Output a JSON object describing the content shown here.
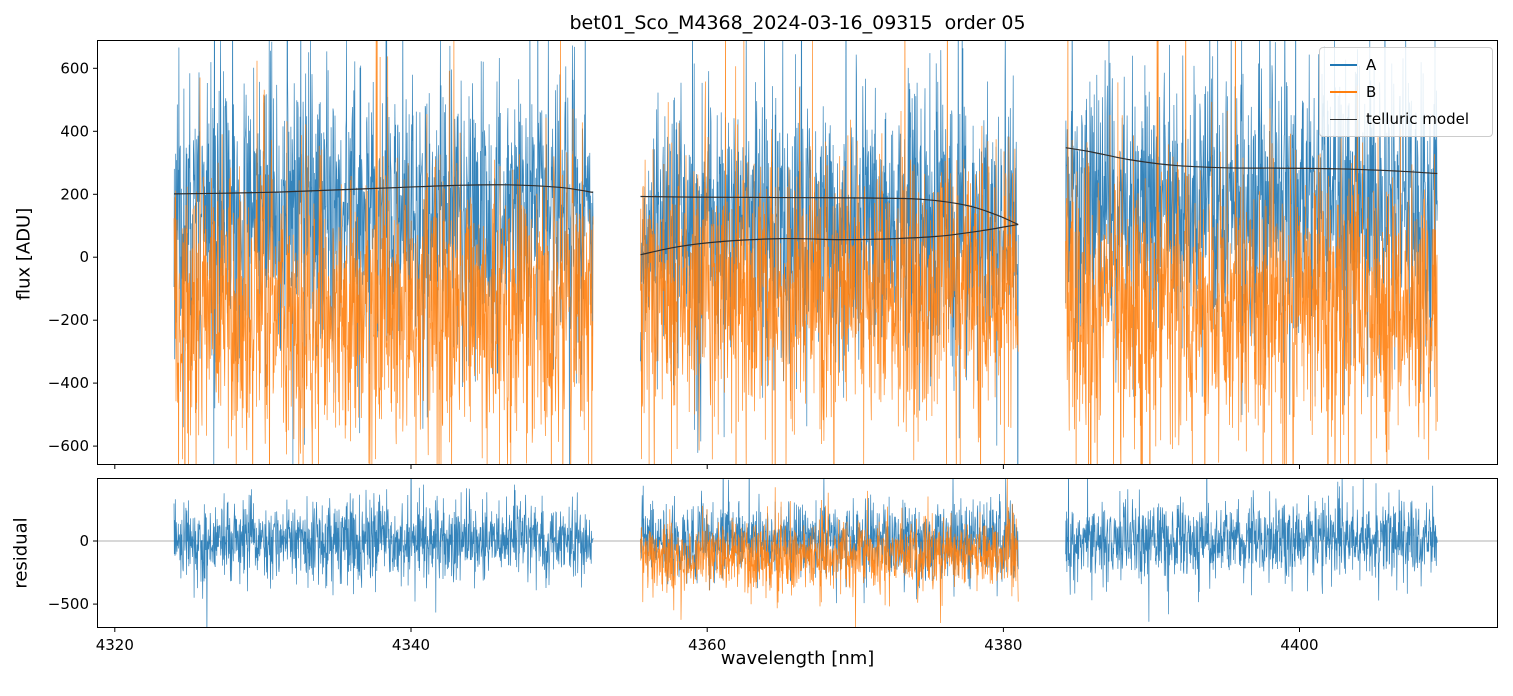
{
  "figure": {
    "background": "#ffffff"
  },
  "chart_data": [
    {
      "type": "line",
      "title": "bet01_Sco_M4368_2024-03-16_09315  order 05",
      "ylabel": "flux [ADU]",
      "xlim": [
        4318.8,
        4413.4
      ],
      "ylim": [
        -660,
        690
      ],
      "yticks": [
        600,
        400,
        200,
        0,
        -200,
        -400,
        -600
      ],
      "xticks": [
        4320,
        4340,
        4360,
        4380,
        4400
      ],
      "grid": false,
      "legend": {
        "position": "upper right",
        "entries": [
          {
            "label": "A",
            "color": "#1f77b4",
            "sample_width": 2.5
          },
          {
            "label": "B",
            "color": "#ff7f0e",
            "sample_width": 2.5
          },
          {
            "label": "telluric model",
            "color": "#2f2f2f",
            "sample_width": 1.5
          }
        ]
      },
      "segments_x": [
        [
          4324.0,
          4352.3
        ],
        [
          4355.5,
          4381.0
        ],
        [
          4384.2,
          4409.3
        ]
      ],
      "points_per_nm": 45,
      "series": [
        {
          "name": "A",
          "color": "#1f77b4",
          "opacity": 0.9,
          "segment_mean": [
            150,
            100,
            180
          ],
          "segment_std": [
            215,
            215,
            215
          ],
          "spike_prob": 0.05,
          "spike_scale": 2.1,
          "seed": 11
        },
        {
          "name": "B",
          "color": "#ff7f0e",
          "opacity": 0.9,
          "segment_mean": [
            -160,
            -110,
            -160
          ],
          "segment_std": [
            225,
            215,
            225
          ],
          "spike_prob": 0.05,
          "spike_scale": 2.1,
          "seed": 77
        }
      ],
      "model": {
        "name": "telluric model",
        "color": "#2f2f2f",
        "width": 1.2,
        "curves": [
          {
            "x": [
              4324.0,
              4327,
              4331,
              4335,
              4339,
              4343,
              4346.5,
              4350,
              4352.3
            ],
            "y": [
              201,
              203,
              207,
              214,
              221,
              228,
              230,
              222,
              206
            ]
          },
          {
            "x": [
              4355.5,
              4359,
              4363,
              4367,
              4371,
              4374.5,
              4377.5,
              4379.5,
              4381.0
            ],
            "y": [
              193,
              191,
              190,
              189,
              188,
              184,
              165,
              135,
              104
            ]
          },
          {
            "x": [
              4355.5,
              4358,
              4361,
              4365,
              4369,
              4372,
              4375.5,
              4378.5,
              4381.0
            ],
            "y": [
              8,
              33,
              50,
              59,
              56,
              58,
              66,
              84,
              104
            ]
          },
          {
            "x": [
              4384.2,
              4386,
              4388.5,
              4391.5,
              4395,
              4398.5,
              4402.5,
              4406.5,
              4409.3
            ],
            "y": [
              348,
              334,
              310,
              292,
              284,
              283,
              281,
              274,
              266
            ]
          }
        ]
      }
    },
    {
      "type": "line",
      "ylabel": "residual",
      "xlabel": "wavelength [nm]",
      "xlim": [
        4318.8,
        4413.4
      ],
      "ylim": [
        -690,
        500
      ],
      "yticks": [
        0,
        -500
      ],
      "xticks": [
        4320,
        4340,
        4360,
        4380,
        4400
      ],
      "grid": false,
      "zero_line": {
        "y": 0,
        "color": "#b0b0b0"
      },
      "segments_x": [
        [
          4324.0,
          4352.3
        ],
        [
          4355.5,
          4381.0
        ],
        [
          4384.2,
          4409.3
        ]
      ],
      "points_per_nm": 45,
      "series": [
        {
          "name": "A",
          "color": "#1f77b4",
          "opacity": 0.9,
          "segment_mean": [
            0,
            0,
            0
          ],
          "segment_std": [
            150,
            155,
            150
          ],
          "spike_prob": 0.05,
          "spike_scale": 2.0,
          "seed": 23
        },
        {
          "name": "B",
          "color": "#ff7f0e",
          "opacity": 0.9,
          "segment_mean": [
            null,
            -110,
            null
          ],
          "segment_std": [
            null,
            140,
            null
          ],
          "spike_prob": 0.05,
          "spike_scale": 2.0,
          "seed": 91
        }
      ]
    }
  ]
}
